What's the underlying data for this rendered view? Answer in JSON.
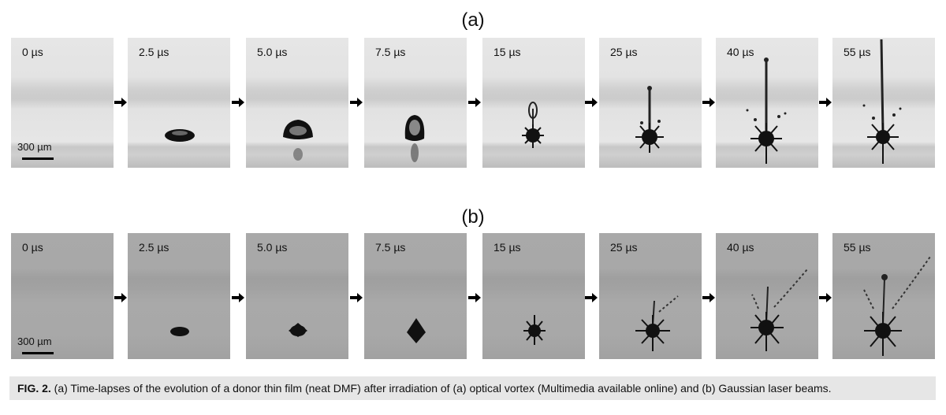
{
  "figure": {
    "row_a_label": "(a)",
    "row_b_label": "(b)",
    "row_a": {
      "frames": [
        "0 µs",
        "2.5 µs",
        "5.0 µs",
        "7.5 µs",
        "15 µs",
        "25 µs",
        "40 µs",
        "55 µs"
      ],
      "scale_bar_label": "300 µm"
    },
    "row_b": {
      "frames": [
        "0 µs",
        "2.5 µs",
        "5.0 µs",
        "7.5 µs",
        "15 µs",
        "25 µs",
        "40 µs",
        "55 µs"
      ],
      "scale_bar_label": "300 µm"
    },
    "caption_prefix": "FIG. 2.",
    "caption_text": " (a) Time-lapses of the evolution of a donor thin film (neat DMF) after irradiation of (a) optical vortex (Multimedia available online) and (b) Gaussian laser beams."
  }
}
